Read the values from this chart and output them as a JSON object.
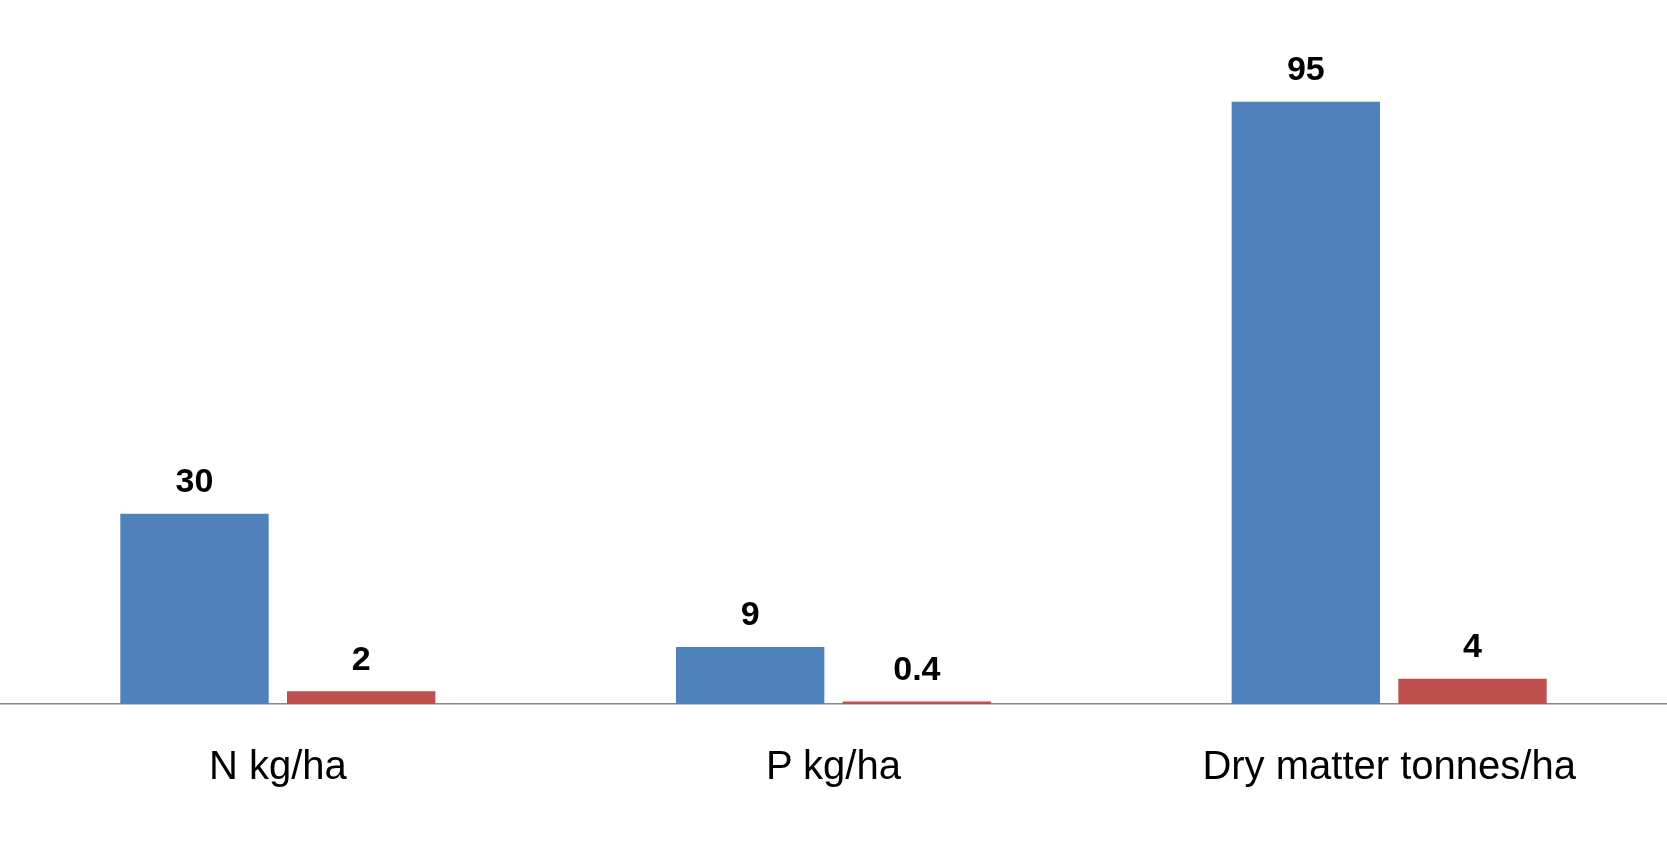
{
  "chart_data": {
    "type": "bar",
    "categories": [
      "N kg/ha",
      "P kg/ha",
      "Dry matter tonnes/ha"
    ],
    "series": [
      {
        "color": "#4f81bd",
        "values": [
          30,
          9,
          95
        ]
      },
      {
        "color": "#c0504d",
        "values": [
          2,
          0.4,
          4
        ]
      }
    ],
    "data_labels": true,
    "grid": false,
    "legend": false
  }
}
